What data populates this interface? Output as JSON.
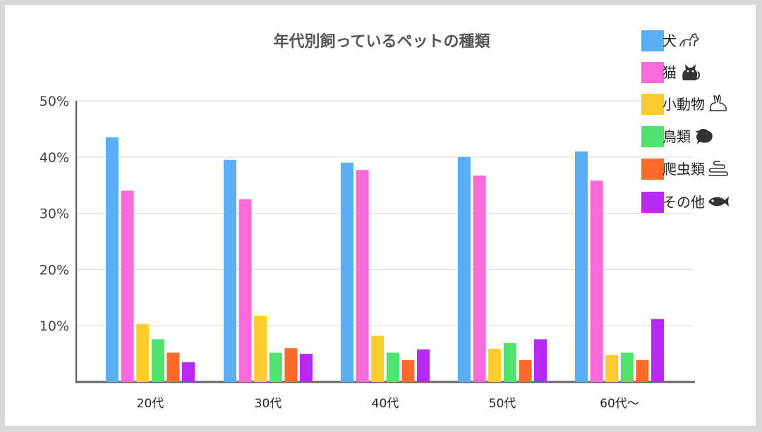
{
  "chart_data": {
    "type": "bar",
    "title": "年代別飼っているペットの種類",
    "categories": [
      "20代",
      "30代",
      "40代",
      "50代",
      "60代～"
    ],
    "ylim": [
      0,
      50
    ],
    "yticks": [
      "10%",
      "20%",
      "30%",
      "40%",
      "50%"
    ],
    "ytick_values": [
      10,
      20,
      30,
      40,
      50
    ],
    "grid": true,
    "legend_position": "right",
    "series": [
      {
        "name": "犬",
        "icon": "dog-icon",
        "color": "#5AAEF6",
        "values": [
          43.5,
          39.5,
          39.0,
          40.0,
          41.0
        ]
      },
      {
        "name": "猫",
        "icon": "cat-icon",
        "color": "#FA6AD9",
        "values": [
          34.0,
          32.5,
          37.7,
          36.7,
          35.8
        ]
      },
      {
        "name": "小動物",
        "icon": "rabbit-icon",
        "color": "#FFCB2E",
        "values": [
          10.3,
          11.8,
          8.2,
          5.9,
          4.8
        ]
      },
      {
        "name": "鳥類",
        "icon": "bird-icon",
        "color": "#4FE36F",
        "values": [
          7.6,
          5.2,
          5.2,
          6.9,
          5.2
        ]
      },
      {
        "name": "爬虫類",
        "icon": "snake-icon",
        "color": "#FD6A2A",
        "values": [
          5.2,
          6.0,
          3.9,
          3.9,
          3.9
        ]
      },
      {
        "name": "その他",
        "icon": "fish-icon",
        "color": "#B52BF2",
        "values": [
          3.5,
          5.0,
          5.8,
          7.6,
          11.2
        ]
      }
    ]
  }
}
